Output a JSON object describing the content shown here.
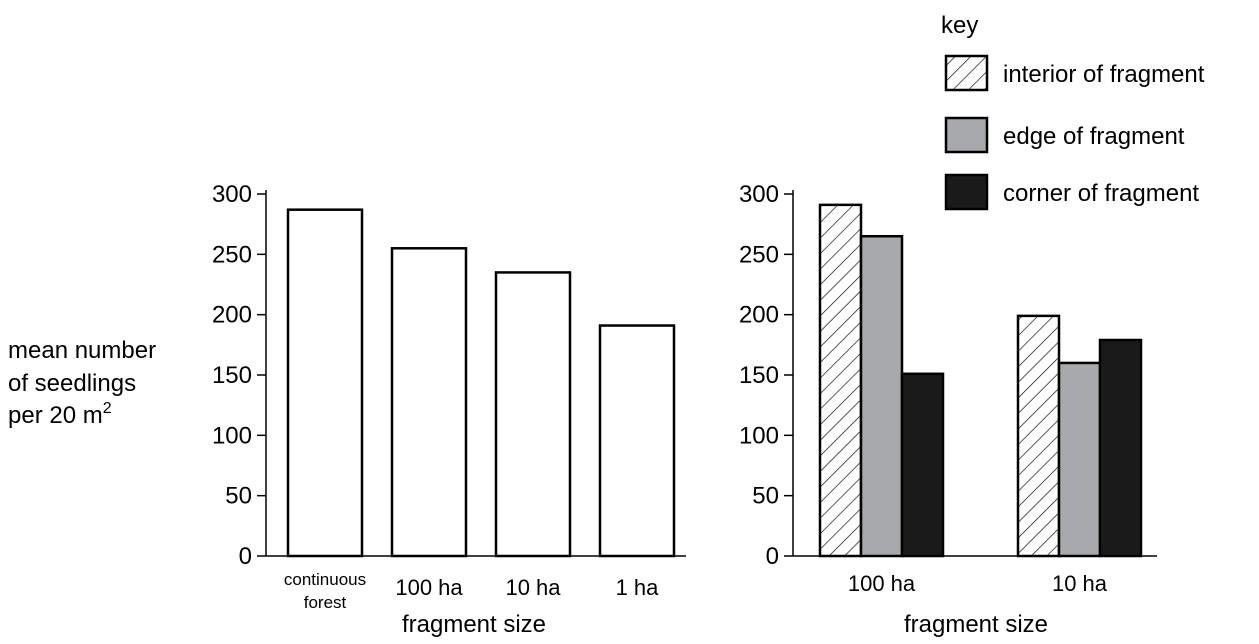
{
  "ylabel": {
    "line1": "mean number",
    "line2": "of seedlings",
    "line3_prefix": "per 20 m",
    "line3_sup": "2"
  },
  "key": {
    "title": "key",
    "entries": [
      {
        "label": "interior of fragment",
        "fill": "hatch"
      },
      {
        "label": "edge of fragment",
        "fill": "#a7a9ac"
      },
      {
        "label": "corner of fragment",
        "fill": "#1a1a1a"
      }
    ]
  },
  "chart_data": [
    {
      "type": "bar",
      "title": "",
      "xlabel": "fragment size",
      "ylabel": "mean number of seedlings per 20 m2",
      "ylim": [
        0,
        300
      ],
      "yticks": [
        "0",
        "50",
        "100",
        "150",
        "200",
        "250",
        "300"
      ],
      "categories": [
        {
          "lines": [
            "continuous",
            "forest"
          ]
        },
        {
          "lines": [
            "100 ha"
          ]
        },
        {
          "lines": [
            "10 ha"
          ]
        },
        {
          "lines": [
            "1 ha"
          ]
        }
      ],
      "values": [
        287,
        255,
        235,
        191
      ]
    },
    {
      "type": "bar",
      "title": "",
      "xlabel": "fragment size",
      "ylabel": "mean number of seedlings per 20 m2",
      "ylim": [
        0,
        300
      ],
      "yticks": [
        "0",
        "50",
        "100",
        "150",
        "200",
        "250",
        "300"
      ],
      "categories": [
        "100 ha",
        "10 ha"
      ],
      "series": [
        {
          "name": "interior of fragment",
          "values": [
            291,
            199
          ]
        },
        {
          "name": "edge of fragment",
          "values": [
            265,
            160
          ]
        },
        {
          "name": "corner of fragment",
          "values": [
            151,
            179
          ]
        }
      ]
    }
  ]
}
